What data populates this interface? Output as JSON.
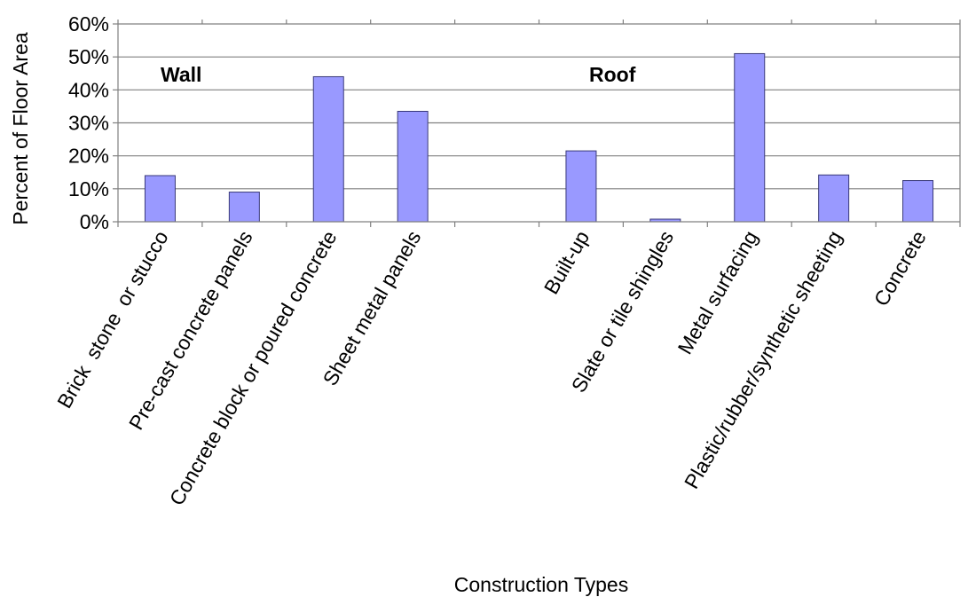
{
  "chart_data": {
    "type": "bar",
    "title": "",
    "xlabel": "Construction Types",
    "ylabel": "Percent of Floor Area",
    "ylim": [
      0,
      0.6
    ],
    "yticks": [
      "0%",
      "10%",
      "20%",
      "30%",
      "40%",
      "50%",
      "60%"
    ],
    "yaxis_format": "percent",
    "grid": true,
    "legend": "none",
    "colors": {
      "bar_fill": "#9999ff",
      "bar_stroke": "#3a3a7a",
      "grid": "#808080",
      "axis": "#808080"
    },
    "group_labels": [
      "Wall",
      "Roof"
    ],
    "categories": [
      "Brick  stone  or stucco",
      "Pre-cast concrete panels",
      "Concrete block or poured concrete",
      "Sheet metal panels",
      "",
      "Built-up",
      "Slate or tile shingles",
      "Metal surfacing",
      "Plastic/rubber/synthetic sheeting",
      "Concrete"
    ],
    "values": [
      0.14,
      0.09,
      0.44,
      0.335,
      null,
      0.215,
      0.008,
      0.51,
      0.142,
      0.125
    ]
  }
}
